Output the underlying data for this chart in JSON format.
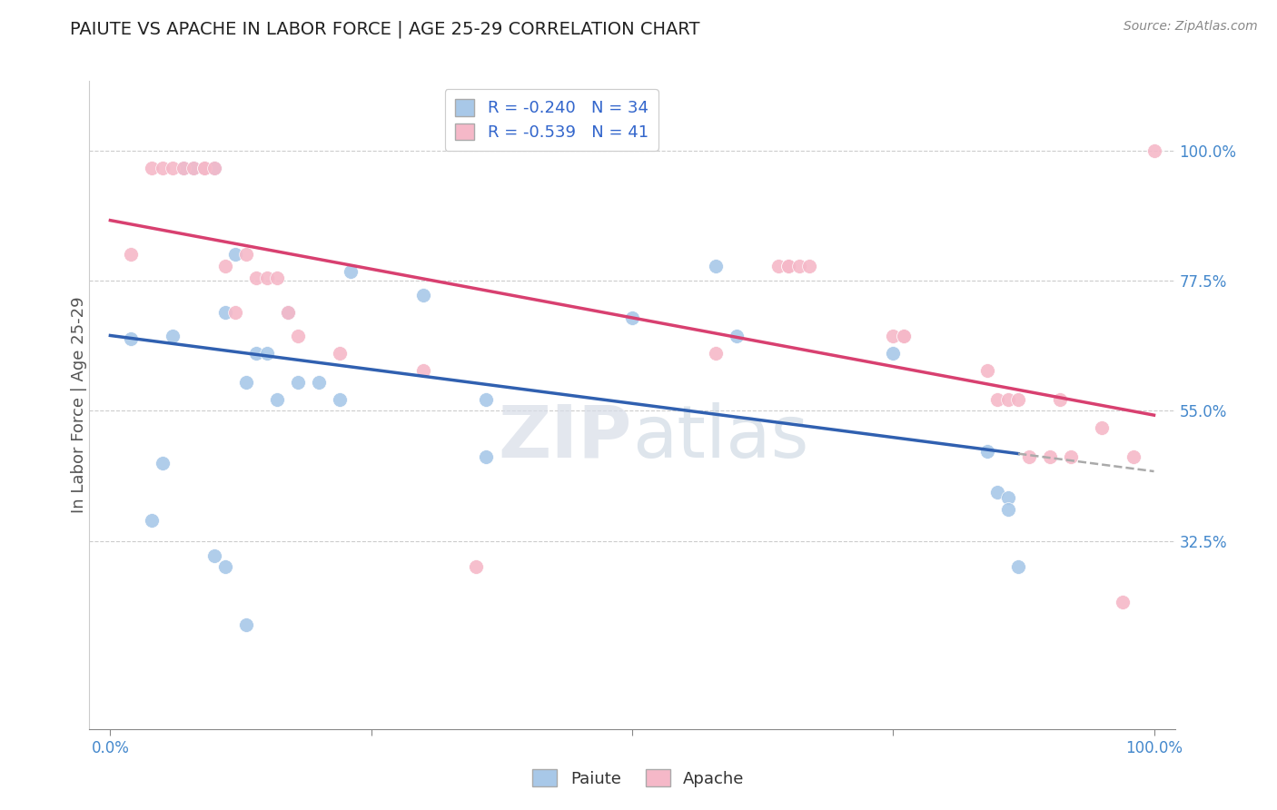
{
  "title": "PAIUTE VS APACHE IN LABOR FORCE | AGE 25-29 CORRELATION CHART",
  "source_text": "Source: ZipAtlas.com",
  "ylabel": "In Labor Force | Age 25-29",
  "xlim": [
    -0.02,
    1.02
  ],
  "ylim": [
    0.0,
    1.12
  ],
  "x_ticks": [
    0.0,
    0.25,
    0.5,
    0.75,
    1.0
  ],
  "x_tick_labels": [
    "0.0%",
    "",
    "",
    "",
    "100.0%"
  ],
  "y_tick_labels_right": [
    "32.5%",
    "55.0%",
    "77.5%",
    "100.0%"
  ],
  "y_ticks_right": [
    0.325,
    0.55,
    0.775,
    1.0
  ],
  "paiute_color": "#a8c8e8",
  "apache_color": "#f5b8c8",
  "paiute_line_color": "#3060b0",
  "apache_line_color": "#d84070",
  "legend_paiute_label": "R = -0.240   N = 34",
  "legend_apache_label": "R = -0.539   N = 41",
  "legend_label_paiute": "Paiute",
  "legend_label_apache": "Apache",
  "grid_color": "#cccccc",
  "background_color": "#ffffff",
  "paiute_x": [
    0.02,
    0.05,
    0.06,
    0.07,
    0.08,
    0.09,
    0.1,
    0.11,
    0.12,
    0.13,
    0.14,
    0.15,
    0.16,
    0.17,
    0.18,
    0.2,
    0.22,
    0.23,
    0.3,
    0.36,
    0.5,
    0.58,
    0.6,
    0.75,
    0.84,
    0.85,
    0.86,
    0.86,
    0.87,
    0.04,
    0.1,
    0.11,
    0.13,
    0.36
  ],
  "paiute_y": [
    0.675,
    0.46,
    0.68,
    0.97,
    0.97,
    0.97,
    0.97,
    0.72,
    0.82,
    0.6,
    0.65,
    0.65,
    0.57,
    0.72,
    0.6,
    0.6,
    0.57,
    0.79,
    0.75,
    0.57,
    0.71,
    0.8,
    0.68,
    0.65,
    0.48,
    0.41,
    0.4,
    0.38,
    0.28,
    0.36,
    0.3,
    0.28,
    0.18,
    0.47
  ],
  "apache_x": [
    0.02,
    0.04,
    0.05,
    0.06,
    0.07,
    0.08,
    0.09,
    0.09,
    0.1,
    0.11,
    0.12,
    0.13,
    0.14,
    0.15,
    0.16,
    0.17,
    0.18,
    0.22,
    0.3,
    0.35,
    0.58,
    0.64,
    0.65,
    0.65,
    0.66,
    0.67,
    0.75,
    0.76,
    0.76,
    0.84,
    0.85,
    0.86,
    0.87,
    0.88,
    0.9,
    0.91,
    0.92,
    0.95,
    0.97,
    0.98,
    1.0
  ],
  "apache_y": [
    0.82,
    0.97,
    0.97,
    0.97,
    0.97,
    0.97,
    0.97,
    0.97,
    0.97,
    0.8,
    0.72,
    0.82,
    0.78,
    0.78,
    0.78,
    0.72,
    0.68,
    0.65,
    0.62,
    0.28,
    0.65,
    0.8,
    0.8,
    0.8,
    0.8,
    0.8,
    0.68,
    0.68,
    0.68,
    0.62,
    0.57,
    0.57,
    0.57,
    0.47,
    0.47,
    0.57,
    0.47,
    0.52,
    0.22,
    0.47,
    1.0
  ],
  "paiute_trend_y_start": 0.74,
  "paiute_trend_y_end": 0.49,
  "apache_trend_y_start": 0.82,
  "apache_trend_y_end": 0.55
}
